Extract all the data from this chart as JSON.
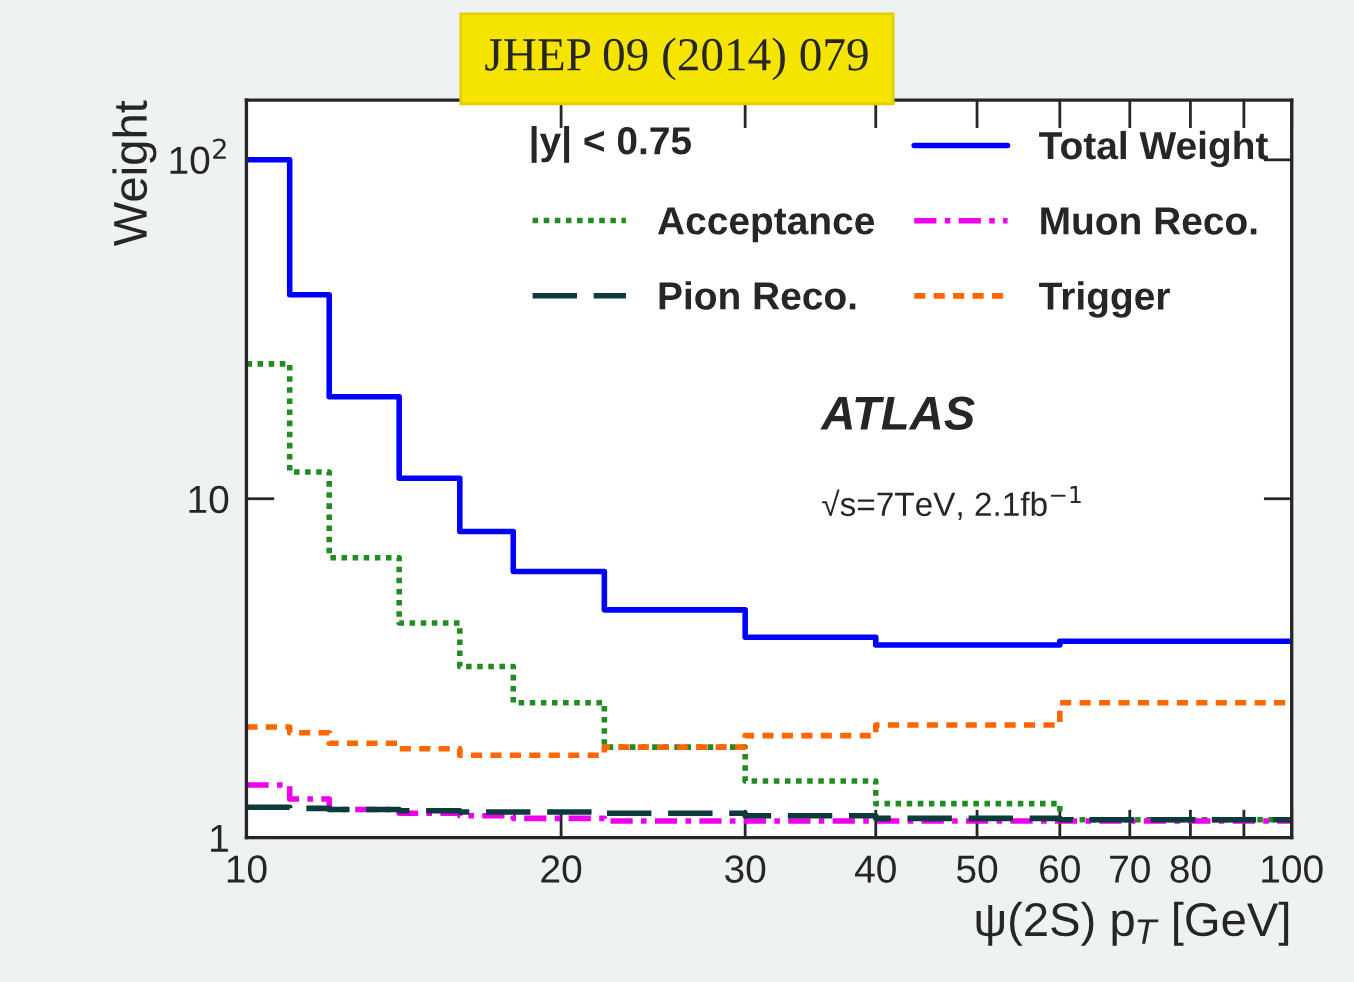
{
  "chart_data": {
    "type": "histogram",
    "title": "JHEP 09 (2014) 079",
    "xlabel": "ψ(2S) p$_{T}$ [GeV]",
    "ylabel": "Weight",
    "bins": [
      10,
      11,
      12,
      14,
      16,
      18,
      22,
      30,
      40,
      60,
      100
    ],
    "series": [
      {
        "name": "Total Weight",
        "color": "#0000ff",
        "line_style": "solid",
        "values": [
          100,
          40,
          20,
          11.5,
          8,
          6.1,
          4.7,
          3.9,
          3.7,
          3.8
        ]
      },
      {
        "name": "Acceptance",
        "color": "#228b22",
        "line_style": "dotted",
        "values": [
          25,
          12,
          6.7,
          4.3,
          3.2,
          2.5,
          1.85,
          1.47,
          1.26,
          1.13
        ]
      },
      {
        "name": "Muon Reco.",
        "color": "#ee00ee",
        "line_style": "dashdot",
        "values": [
          1.43,
          1.3,
          1.21,
          1.18,
          1.16,
          1.14,
          1.12,
          1.12,
          1.12,
          1.12
        ]
      },
      {
        "name": "Pion Reco.",
        "color": "#0d3b3b",
        "line_style": "longdash",
        "values": [
          1.23,
          1.22,
          1.21,
          1.2,
          1.19,
          1.19,
          1.18,
          1.16,
          1.14,
          1.13
        ]
      },
      {
        "name": "Trigger",
        "color": "#ff6600",
        "line_style": "dashed",
        "values": [
          2.12,
          2.04,
          1.9,
          1.83,
          1.75,
          1.75,
          1.85,
          2.0,
          2.15,
          2.5
        ]
      }
    ],
    "log": "xy",
    "xlim": [
      10,
      100
    ],
    "ylim": [
      1,
      150
    ],
    "xticks": [
      10,
      20,
      30,
      40,
      50,
      60,
      70,
      80,
      {
        "value": 90,
        "label": null
      },
      100
    ],
    "yticks": [
      {
        "value": 1,
        "label": "1"
      },
      {
        "value": 10,
        "label": "10"
      },
      {
        "value": 100,
        "label": "10$^{2}$"
      }
    ],
    "grid": false,
    "legend": "top",
    "annotations": [
      "|y| < 0.75",
      "ATLAS",
      "√s=7TeV, 2.1fb$^{−1}$"
    ]
  }
}
